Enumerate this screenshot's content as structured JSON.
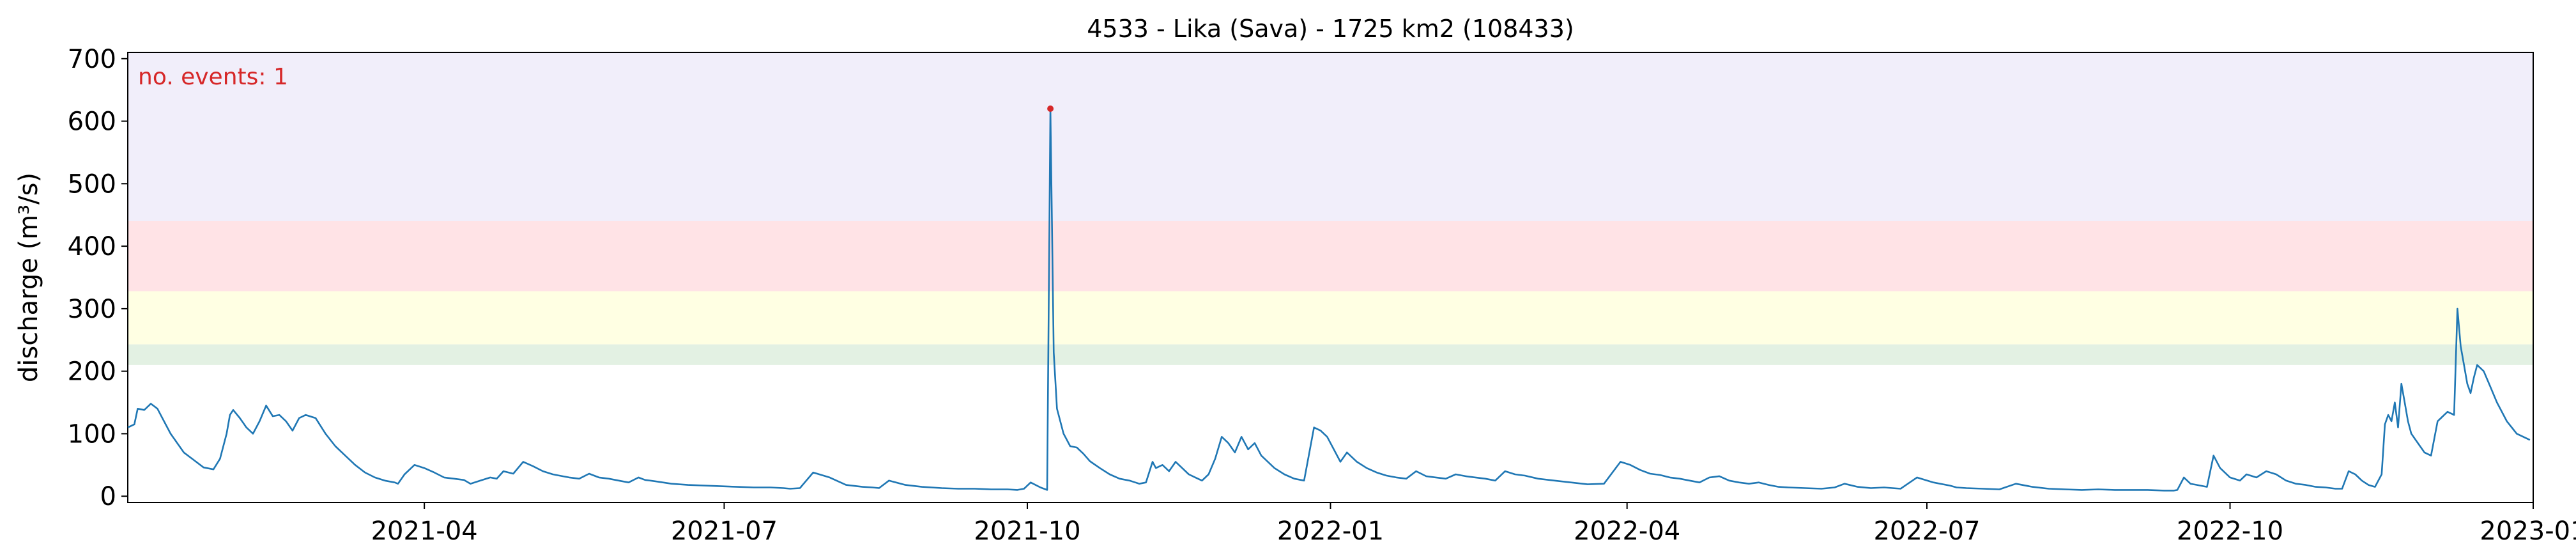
{
  "chart_data": {
    "type": "line",
    "title": "4533 - Lika (Sava) - 1725 km2 (108433)",
    "xlabel": "",
    "ylabel": "discharge (m³/s)",
    "xlim": [
      "2021-01-01",
      "2023-01-01"
    ],
    "ylim": [
      -10,
      710
    ],
    "grid": false,
    "x_ticks": [
      "2021-04",
      "2021-07",
      "2021-10",
      "2022-01",
      "2022-04",
      "2022-07",
      "2022-10",
      "2023-01"
    ],
    "y_ticks": [
      0,
      100,
      200,
      300,
      400,
      500,
      600,
      700
    ],
    "annotation": "no. events: 1",
    "threshold_bands": [
      {
        "from": 210,
        "to": 243,
        "color": "#e3f1e3"
      },
      {
        "from": 243,
        "to": 328,
        "color": "#ffffe3"
      },
      {
        "from": 328,
        "to": 440,
        "color": "#ffe3e6"
      },
      {
        "from": 440,
        "to": 710,
        "color": "#f1eefa"
      }
    ],
    "line_color": "#1f77b4",
    "event_marker_color": "#d62728",
    "events": [
      {
        "date": "2021-10-08",
        "value": 620
      }
    ],
    "series": [
      {
        "x": [
          "2021-01-01",
          "2021-01-03",
          "2021-01-04",
          "2021-01-06",
          "2021-01-08",
          "2021-01-10",
          "2021-01-12",
          "2021-01-14",
          "2021-01-16",
          "2021-01-18",
          "2021-01-21",
          "2021-01-24",
          "2021-01-27",
          "2021-01-29",
          "2021-01-31",
          "2021-02-01",
          "2021-02-02",
          "2021-02-04",
          "2021-02-06",
          "2021-02-08",
          "2021-02-10",
          "2021-02-12",
          "2021-02-14",
          "2021-02-16",
          "2021-02-18",
          "2021-02-20",
          "2021-02-22",
          "2021-02-24",
          "2021-02-27",
          "2021-03-02",
          "2021-03-05",
          "2021-03-08",
          "2021-03-11",
          "2021-03-14",
          "2021-03-17",
          "2021-03-20",
          "2021-03-23",
          "2021-03-24",
          "2021-03-26",
          "2021-03-29",
          "2021-04-01",
          "2021-04-04",
          "2021-04-07",
          "2021-04-10",
          "2021-04-13",
          "2021-04-15",
          "2021-04-18",
          "2021-04-21",
          "2021-04-23",
          "2021-04-25",
          "2021-04-28",
          "2021-05-01",
          "2021-05-04",
          "2021-05-07",
          "2021-05-10",
          "2021-05-12",
          "2021-05-15",
          "2021-05-18",
          "2021-05-21",
          "2021-05-24",
          "2021-05-27",
          "2021-05-30",
          "2021-06-02",
          "2021-06-05",
          "2021-06-07",
          "2021-06-10",
          "2021-06-15",
          "2021-06-20",
          "2021-06-25",
          "2021-06-30",
          "2021-07-05",
          "2021-07-10",
          "2021-07-15",
          "2021-07-19",
          "2021-07-21",
          "2021-07-24",
          "2021-07-28",
          "2021-08-02",
          "2021-08-07",
          "2021-08-12",
          "2021-08-15",
          "2021-08-17",
          "2021-08-20",
          "2021-08-25",
          "2021-08-30",
          "2021-09-05",
          "2021-09-10",
          "2021-09-15",
          "2021-09-20",
          "2021-09-25",
          "2021-09-28",
          "2021-09-30",
          "2021-10-02",
          "2021-10-05",
          "2021-10-07",
          "2021-10-08",
          "2021-10-09",
          "2021-10-10",
          "2021-10-12",
          "2021-10-14",
          "2021-10-16",
          "2021-10-18",
          "2021-10-20",
          "2021-10-23",
          "2021-10-26",
          "2021-10-29",
          "2021-11-01",
          "2021-11-04",
          "2021-11-06",
          "2021-11-08",
          "2021-11-09",
          "2021-11-11",
          "2021-11-13",
          "2021-11-15",
          "2021-11-17",
          "2021-11-19",
          "2021-11-21",
          "2021-11-23",
          "2021-11-25",
          "2021-11-27",
          "2021-11-29",
          "2021-12-01",
          "2021-12-03",
          "2021-12-05",
          "2021-12-07",
          "2021-12-09",
          "2021-12-11",
          "2021-12-13",
          "2021-12-15",
          "2021-12-18",
          "2021-12-21",
          "2021-12-24",
          "2021-12-27",
          "2021-12-29",
          "2021-12-31",
          "2022-01-02",
          "2022-01-04",
          "2022-01-06",
          "2022-01-09",
          "2022-01-12",
          "2022-01-15",
          "2022-01-18",
          "2022-01-21",
          "2022-01-24",
          "2022-01-27",
          "2022-01-30",
          "2022-02-02",
          "2022-02-05",
          "2022-02-08",
          "2022-02-11",
          "2022-02-14",
          "2022-02-17",
          "2022-02-20",
          "2022-02-23",
          "2022-02-26",
          "2022-03-01",
          "2022-03-05",
          "2022-03-10",
          "2022-03-15",
          "2022-03-20",
          "2022-03-25",
          "2022-03-30",
          "2022-04-02",
          "2022-04-05",
          "2022-04-08",
          "2022-04-11",
          "2022-04-14",
          "2022-04-17",
          "2022-04-20",
          "2022-04-23",
          "2022-04-26",
          "2022-04-29",
          "2022-05-02",
          "2022-05-05",
          "2022-05-08",
          "2022-05-11",
          "2022-05-14",
          "2022-05-17",
          "2022-05-20",
          "2022-05-25",
          "2022-05-30",
          "2022-06-03",
          "2022-06-06",
          "2022-06-10",
          "2022-06-14",
          "2022-06-18",
          "2022-06-23",
          "2022-06-28",
          "2022-07-03",
          "2022-07-08",
          "2022-07-10",
          "2022-07-13",
          "2022-07-18",
          "2022-07-23",
          "2022-07-28",
          "2022-08-02",
          "2022-08-07",
          "2022-08-12",
          "2022-08-17",
          "2022-08-22",
          "2022-08-27",
          "2022-09-01",
          "2022-09-06",
          "2022-09-11",
          "2022-09-14",
          "2022-09-15",
          "2022-09-17",
          "2022-09-19",
          "2022-09-21",
          "2022-09-24",
          "2022-09-26",
          "2022-09-28",
          "2022-10-01",
          "2022-10-04",
          "2022-10-06",
          "2022-10-09",
          "2022-10-12",
          "2022-10-15",
          "2022-10-18",
          "2022-10-21",
          "2022-10-24",
          "2022-10-27",
          "2022-10-30",
          "2022-11-02",
          "2022-11-04",
          "2022-11-06",
          "2022-11-08",
          "2022-11-10",
          "2022-11-12",
          "2022-11-14",
          "2022-11-16",
          "2022-11-17",
          "2022-11-18",
          "2022-11-19",
          "2022-11-20",
          "2022-11-21",
          "2022-11-22",
          "2022-11-23",
          "2022-11-24",
          "2022-11-25",
          "2022-11-27",
          "2022-11-29",
          "2022-12-01",
          "2022-12-03",
          "2022-12-04",
          "2022-12-05",
          "2022-12-06",
          "2022-12-08",
          "2022-12-09",
          "2022-12-10",
          "2022-12-11",
          "2022-12-12",
          "2022-12-13",
          "2022-12-14",
          "2022-12-15",
          "2022-12-17",
          "2022-12-19",
          "2022-12-21",
          "2022-12-24",
          "2022-12-27",
          "2022-12-29",
          "2022-12-31"
        ],
        "values": [
          110,
          115,
          140,
          138,
          148,
          140,
          120,
          100,
          85,
          70,
          58,
          46,
          43,
          60,
          100,
          130,
          138,
          125,
          110,
          100,
          120,
          145,
          128,
          130,
          120,
          105,
          125,
          130,
          125,
          100,
          80,
          65,
          50,
          38,
          30,
          25,
          22,
          20,
          35,
          50,
          45,
          38,
          30,
          28,
          26,
          20,
          25,
          30,
          28,
          40,
          36,
          55,
          48,
          40,
          35,
          33,
          30,
          28,
          36,
          30,
          28,
          25,
          22,
          30,
          26,
          24,
          20,
          18,
          17,
          16,
          15,
          14,
          14,
          13,
          12,
          13,
          38,
          30,
          18,
          15,
          14,
          13,
          25,
          18,
          15,
          13,
          12,
          12,
          11,
          11,
          10,
          12,
          22,
          14,
          10,
          620,
          230,
          140,
          100,
          80,
          78,
          68,
          56,
          45,
          35,
          28,
          25,
          20,
          22,
          55,
          45,
          50,
          40,
          55,
          45,
          35,
          30,
          25,
          35,
          60,
          95,
          85,
          70,
          95,
          75,
          85,
          65,
          55,
          45,
          35,
          28,
          25,
          110,
          105,
          95,
          75,
          55,
          70,
          55,
          45,
          38,
          33,
          30,
          28,
          40,
          32,
          30,
          28,
          35,
          32,
          30,
          28,
          25,
          40,
          35,
          33,
          28,
          25,
          22,
          19,
          20,
          55,
          50,
          42,
          36,
          34,
          30,
          28,
          25,
          22,
          30,
          32,
          25,
          22,
          20,
          22,
          18,
          15,
          14,
          13,
          12,
          14,
          20,
          15,
          13,
          14,
          12,
          30,
          22,
          17,
          14,
          13,
          12,
          11,
          20,
          15,
          12,
          11,
          10,
          11,
          10,
          10,
          10,
          9,
          9,
          10,
          30,
          20,
          18,
          15,
          65,
          45,
          30,
          25,
          35,
          30,
          40,
          35,
          25,
          20,
          18,
          15,
          14,
          12,
          12,
          40,
          35,
          25,
          18,
          15,
          35,
          115,
          130,
          120,
          150,
          110,
          180,
          150,
          120,
          100,
          85,
          70,
          65,
          120,
          125,
          130,
          135,
          130,
          300,
          240,
          210,
          180,
          165,
          190,
          210,
          200,
          175,
          150,
          120,
          100,
          95,
          90
        ]
      }
    ]
  }
}
